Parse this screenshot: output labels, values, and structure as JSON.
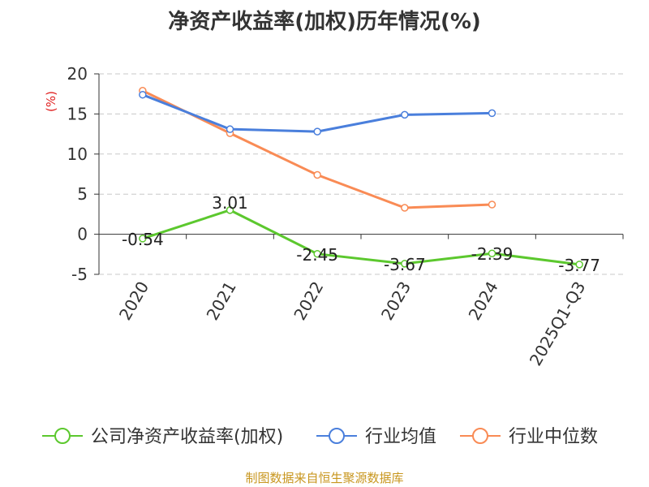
{
  "chart_data": {
    "type": "line",
    "title": "净资产收益率(加权)历年情况(%)",
    "ylabel": "(%)",
    "xlabel": "",
    "categories": [
      "2020",
      "2021",
      "2022",
      "2023",
      "2024",
      "2025Q1-Q3"
    ],
    "ylim": [
      -5,
      20
    ],
    "yticks": [
      "20",
      "15",
      "10",
      "5",
      "0",
      "-5"
    ],
    "grid": true,
    "legend": "bottom",
    "series": [
      {
        "name": "公司净资产收益率(加权)",
        "color": "#5cc82e",
        "values": [
          -0.54,
          3.01,
          -2.45,
          -3.67,
          -2.39,
          -3.77
        ],
        "labels": [
          "-0.54",
          "3.01",
          "-2.45",
          "-3.67",
          "-2.39",
          "-3.77"
        ]
      },
      {
        "name": "行业均值",
        "color": "#4a7fdc",
        "values": [
          17.4,
          13.1,
          12.8,
          14.9,
          15.1,
          null
        ]
      },
      {
        "name": "行业中位数",
        "color": "#f98b55",
        "values": [
          17.9,
          12.6,
          7.4,
          3.3,
          3.7,
          null
        ]
      }
    ]
  },
  "source": "制图数据来自恒生聚源数据库"
}
